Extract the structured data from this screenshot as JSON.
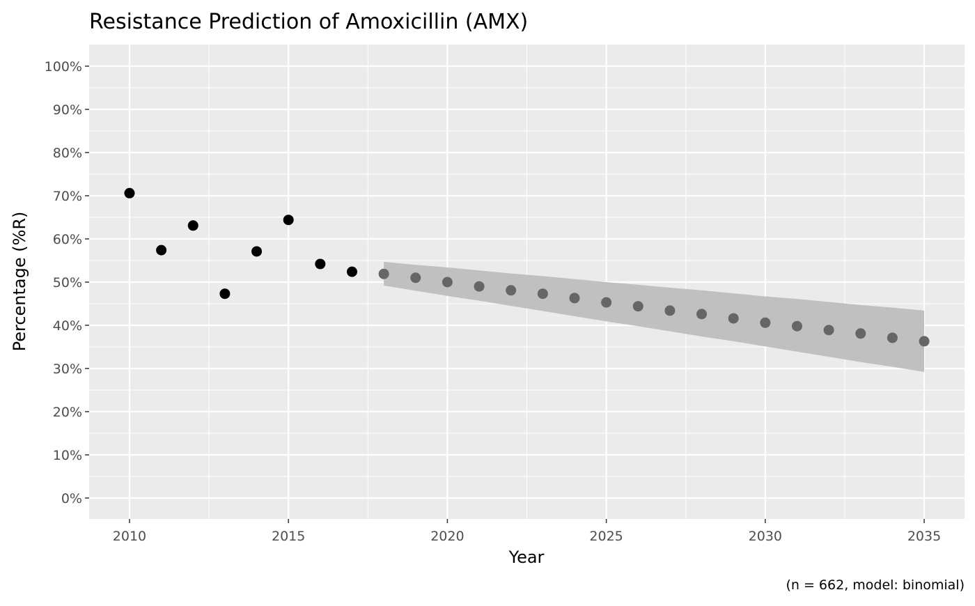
{
  "chart_data": {
    "type": "scatter",
    "title": "Resistance Prediction of Amoxicillin (AMX)",
    "xlabel": "Year",
    "ylabel": "Percentage (%R)",
    "caption": "(n = 662, model: binomial)",
    "xlim": [
      2008.73,
      2036.27
    ],
    "ylim": [
      -4.84,
      105
    ],
    "x_ticks": [
      2010,
      2015,
      2020,
      2025,
      2030,
      2035
    ],
    "x_tick_labels": [
      "2010",
      "2015",
      "2020",
      "2025",
      "2030",
      "2035"
    ],
    "y_ticks": [
      0,
      10,
      20,
      30,
      40,
      50,
      60,
      70,
      80,
      90,
      100
    ],
    "y_tick_labels": [
      "0%",
      "10%",
      "20%",
      "30%",
      "40%",
      "50%",
      "60%",
      "70%",
      "80%",
      "90%",
      "100%"
    ],
    "grid": true,
    "colors": {
      "panel": "#ebebeb",
      "observed": "#000000",
      "predicted": "#666666",
      "ribbon": "#bebebe"
    },
    "observed": {
      "x": [
        2010,
        2011,
        2012,
        2013,
        2014,
        2015,
        2016,
        2017
      ],
      "y": [
        70.6,
        57.4,
        63.1,
        47.3,
        57.1,
        64.4,
        54.2,
        52.4
      ]
    },
    "predicted": {
      "x": [
        2018,
        2019,
        2020,
        2021,
        2022,
        2023,
        2024,
        2025,
        2026,
        2027,
        2028,
        2029,
        2030,
        2031,
        2032,
        2033,
        2034,
        2035
      ],
      "y": [
        51.9,
        51.0,
        50.0,
        49.0,
        48.1,
        47.3,
        46.3,
        45.3,
        44.4,
        43.4,
        42.6,
        41.6,
        40.6,
        39.8,
        38.9,
        38.1,
        37.1,
        36.3
      ],
      "upper": [
        54.7,
        54.0,
        53.4,
        52.7,
        52.0,
        51.4,
        50.7,
        50.0,
        49.4,
        48.7,
        48.1,
        47.4,
        46.7,
        46.1,
        45.4,
        44.7,
        44.1,
        43.4
      ],
      "lower": [
        49.2,
        48.0,
        46.8,
        45.7,
        44.5,
        43.3,
        42.1,
        40.9,
        39.8,
        38.6,
        37.4,
        36.3,
        35.1,
        33.9,
        32.7,
        31.5,
        30.4,
        29.2
      ]
    }
  }
}
